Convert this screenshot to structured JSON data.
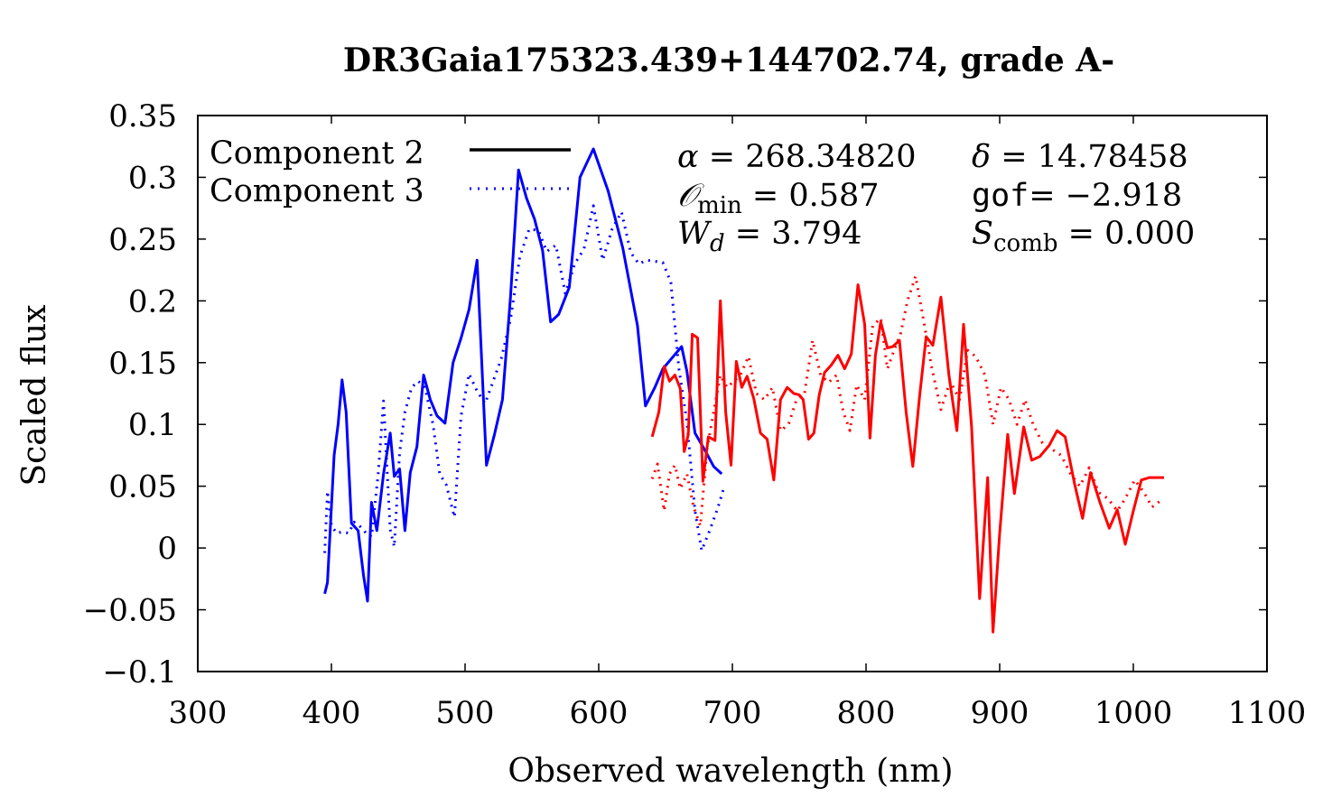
{
  "chart_data": {
    "type": "line",
    "title": "DR3Gaia175323.439+144702.74, grade A-",
    "xlabel": "Observed wavelength (nm)",
    "ylabel": "Scaled flux",
    "xlim": [
      300,
      1100
    ],
    "ylim": [
      -0.1,
      0.35
    ],
    "xticks": [
      300,
      400,
      500,
      600,
      700,
      800,
      900,
      1000,
      1100
    ],
    "xtick_labels": [
      "300",
      "400",
      "500",
      "600",
      "700",
      "800",
      "900",
      "1000",
      "1100"
    ],
    "yticks": [
      -0.1,
      -0.05,
      0,
      0.05,
      0.1,
      0.15,
      0.2,
      0.25,
      0.3,
      0.35
    ],
    "ytick_labels": [
      "−0.1",
      "−0.05",
      "0",
      "0.05",
      "0.1",
      "0.15",
      "0.2",
      "0.25",
      "0.3",
      "0.35"
    ],
    "legend_position": "top-left",
    "legend": [
      {
        "label": "Component 2",
        "style": "solid",
        "color": "#000000"
      },
      {
        "label": "Component 3",
        "style": "dotted",
        "color": "#0000ff"
      }
    ],
    "annotations": {
      "alpha": {
        "symbol": "α",
        "text": " = 268.34820"
      },
      "delta": {
        "symbol": "δ",
        "text": " = 14.78458"
      },
      "omin": {
        "symbol": "𝒪",
        "sub": "min",
        "text": " = 0.587"
      },
      "gof": {
        "symbol": "gof",
        "text": "= −2.918"
      },
      "wd": {
        "symbol": "W",
        "sub": "d",
        "text": " = 3.794"
      },
      "scomb": {
        "symbol": "S",
        "sub": "comb",
        "text": " = 0.000"
      }
    },
    "series": [
      {
        "name": "Component 2 (blue)",
        "color": "#0000ff",
        "style": "solid",
        "x": [
          395,
          397,
          402,
          405,
          408,
          411,
          415,
          420,
          424,
          427,
          430,
          434,
          439,
          444,
          447,
          451,
          455,
          459,
          464,
          469,
          474,
          479,
          485,
          491,
          497,
          503,
          509,
          516,
          522,
          528,
          534,
          540,
          546,
          552,
          558,
          564,
          570,
          578,
          586,
          596,
          607,
          618,
          629,
          635,
          642,
          648,
          655,
          662,
          666,
          672,
          679,
          686,
          692
        ],
        "values": [
          -0.037,
          -0.028,
          0.075,
          0.1,
          0.136,
          0.11,
          0.02,
          0.014,
          -0.022,
          -0.043,
          0.037,
          0.014,
          0.06,
          0.093,
          0.058,
          0.064,
          0.014,
          0.061,
          0.082,
          0.14,
          0.12,
          0.107,
          0.101,
          0.15,
          0.17,
          0.193,
          0.233,
          0.067,
          0.092,
          0.12,
          0.203,
          0.306,
          0.283,
          0.266,
          0.241,
          0.183,
          0.189,
          0.211,
          0.3,
          0.323,
          0.289,
          0.243,
          0.18,
          0.115,
          0.13,
          0.145,
          0.154,
          0.163,
          0.143,
          0.093,
          0.08,
          0.066,
          0.06
        ]
      },
      {
        "name": "Component 3 (blue)",
        "color": "#0000ff",
        "style": "dotted",
        "x": [
          395,
          397,
          400,
          404,
          408,
          413,
          417,
          421,
          426,
          430,
          435,
          439,
          444,
          447,
          451,
          455,
          460,
          465,
          470,
          476,
          481,
          486,
          492,
          497,
          503,
          509,
          515,
          521,
          527,
          534,
          541,
          548,
          555,
          561,
          568,
          575,
          582,
          589,
          596,
          603,
          610,
          617,
          624,
          630,
          636,
          642,
          648,
          654,
          660,
          666,
          672,
          677,
          683,
          689,
          694
        ],
        "values": [
          -0.004,
          0.046,
          0.018,
          0.012,
          0.013,
          0.012,
          0.021,
          0.018,
          0.012,
          0.009,
          0.06,
          0.119,
          0.015,
          0.001,
          0.077,
          0.11,
          0.13,
          0.135,
          0.13,
          0.1,
          0.06,
          0.051,
          0.025,
          0.107,
          0.141,
          0.127,
          0.117,
          0.135,
          0.153,
          0.185,
          0.236,
          0.258,
          0.257,
          0.24,
          0.245,
          0.206,
          0.23,
          0.242,
          0.277,
          0.233,
          0.258,
          0.272,
          0.239,
          0.23,
          0.233,
          0.232,
          0.231,
          0.215,
          0.145,
          0.102,
          0.03,
          -0.002,
          0.014,
          0.032,
          0.05
        ]
      },
      {
        "name": "Component 2 (red)",
        "color": "#ff0000",
        "style": "solid",
        "x": [
          640,
          645,
          649,
          653,
          657,
          661,
          664,
          667,
          670,
          674,
          678,
          682,
          687,
          691,
          695,
          699,
          703,
          707,
          711,
          716,
          721,
          726,
          731,
          736,
          741,
          746,
          750,
          753,
          757,
          761,
          765,
          769,
          774,
          779,
          784,
          789,
          794,
          799,
          803,
          807,
          811,
          816,
          820,
          825,
          830,
          835,
          840,
          845,
          850,
          856,
          862,
          868,
          873,
          879,
          885,
          891,
          895,
          900,
          906,
          911,
          918,
          924,
          930,
          937,
          943,
          949,
          956,
          962,
          968,
          975,
          982,
          988,
          994,
          1000,
          1006,
          1012,
          1018,
          1023
        ],
        "values": [
          0.09,
          0.11,
          0.147,
          0.135,
          0.14,
          0.129,
          0.078,
          0.092,
          0.173,
          0.17,
          0.054,
          0.09,
          0.087,
          0.2,
          0.11,
          0.067,
          0.151,
          0.13,
          0.139,
          0.121,
          0.093,
          0.088,
          0.055,
          0.12,
          0.13,
          0.125,
          0.124,
          0.12,
          0.088,
          0.093,
          0.124,
          0.142,
          0.148,
          0.156,
          0.145,
          0.157,
          0.213,
          0.181,
          0.089,
          0.156,
          0.183,
          0.162,
          0.163,
          0.168,
          0.11,
          0.066,
          0.122,
          0.171,
          0.164,
          0.203,
          0.14,
          0.095,
          0.181,
          0.098,
          -0.041,
          0.057,
          -0.068,
          0.012,
          0.092,
          0.044,
          0.098,
          0.071,
          0.074,
          0.083,
          0.095,
          0.09,
          0.052,
          0.024,
          0.061,
          0.037,
          0.016,
          0.031,
          0.003,
          0.03,
          0.055,
          0.057,
          0.057,
          0.057
        ]
      },
      {
        "name": "Component 3 (red)",
        "color": "#ff0000",
        "style": "dotted",
        "x": [
          640,
          644,
          649,
          653,
          657,
          661,
          666,
          671,
          676,
          681,
          686,
          691,
          696,
          701,
          706,
          712,
          718,
          724,
          730,
          736,
          742,
          748,
          754,
          760,
          766,
          772,
          778,
          783,
          788,
          793,
          799,
          805,
          811,
          816,
          821,
          826,
          831,
          837,
          843,
          849,
          856,
          863,
          870,
          876,
          882,
          889,
          895,
          901,
          907,
          913,
          919,
          925,
          932,
          939,
          946,
          953,
          960,
          967,
          974,
          981,
          988,
          994,
          1001,
          1008,
          1014,
          1020
        ],
        "values": [
          0.056,
          0.068,
          0.03,
          0.06,
          0.067,
          0.048,
          0.06,
          0.033,
          0.018,
          0.08,
          0.11,
          0.14,
          0.13,
          0.135,
          0.14,
          0.155,
          0.125,
          0.12,
          0.13,
          0.095,
          0.1,
          0.12,
          0.125,
          0.168,
          0.14,
          0.134,
          0.14,
          0.11,
          0.095,
          0.132,
          0.12,
          0.18,
          0.186,
          0.145,
          0.16,
          0.174,
          0.2,
          0.22,
          0.185,
          0.147,
          0.112,
          0.135,
          0.12,
          0.16,
          0.155,
          0.14,
          0.1,
          0.13,
          0.12,
          0.1,
          0.12,
          0.1,
          0.085,
          0.08,
          0.075,
          0.06,
          0.05,
          0.065,
          0.045,
          0.04,
          0.03,
          0.04,
          0.055,
          0.045,
          0.033,
          0.038
        ]
      }
    ]
  }
}
